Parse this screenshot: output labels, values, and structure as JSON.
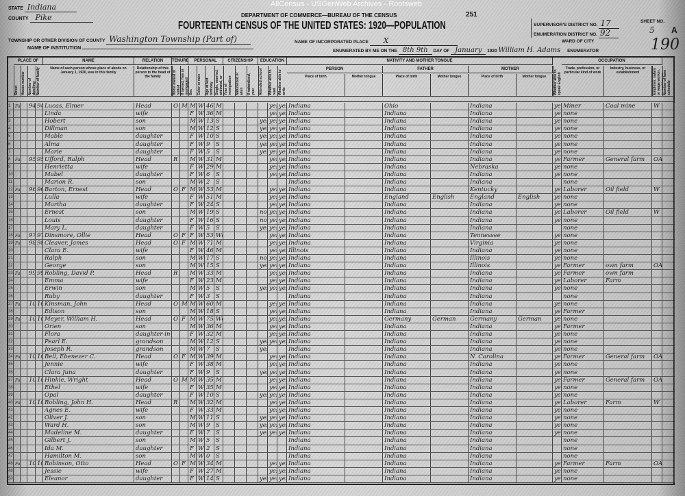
{
  "watermark": "AllCensus - USGenWeb Archives - Rootsweb",
  "header": {
    "state_label": "State",
    "state": "Indiana",
    "county_label": "County",
    "county": "Pike",
    "township_label": "Township or other division of county",
    "township": "Washington Township (Part of)",
    "institution_label": "Name of Institution",
    "department": "Department of Commerce—Bureau of the Census",
    "title": "Fourteenth Census of the United States: 1920—Population",
    "form_no": "251",
    "incorporated_label": "Name of incorporated place",
    "incorporated": "X",
    "enumerated_label": "Enumerated by me on the",
    "enumerated_day": "8th 9th",
    "day_of_label": "day of",
    "month": "January",
    "year": "1920",
    "enumerator": "William H. Adams",
    "enumerator_label": "Enumerator",
    "supervisor_label": "Supervisor's District No.",
    "supervisor": "17",
    "ed_label": "Enumeration District No.",
    "ed": "92",
    "ward_label": "Ward of city",
    "sheet_label": "Sheet No.",
    "sheet": "5",
    "sheet_side": "A",
    "stamp": "190"
  },
  "groups": {
    "abode": "Place of abode",
    "name": "Name",
    "relation": "Relation",
    "tenure": "Tenure",
    "personal": "Personal description",
    "citizenship": "Citizenship",
    "education": "Education",
    "nativity": "Nativity and mother tongue",
    "person": "Person",
    "father": "Father",
    "mother": "Mother",
    "occupation": "Occupation"
  },
  "columns": {
    "c1": "Street",
    "c2": "House number",
    "c3": "Number of dwelling",
    "c4": "Number of family",
    "c5": "Name of each person whose place of abode on January 1, 1920, was in this family",
    "c6": "Relationship of this person to the head of the family",
    "c7": "Home owned or rented",
    "c8": "If owned, free or mortgaged",
    "c9": "Sex",
    "c10": "Color or race",
    "c11": "Age at last birthday",
    "c12": "Single, married, widowed, or divorced",
    "c13": "Year of immigration",
    "c14": "Naturalized or alien",
    "c15": "If naturalized, year",
    "c16": "Attended school",
    "c17": "Whether able to read",
    "c18": "Whether able to write",
    "c19": "Place of birth",
    "c20": "Mother tongue",
    "c21": "Place of birth",
    "c22": "Mother tongue",
    "c23": "Place of birth",
    "c24": "Mother tongue",
    "c25": "Whether able to speak English",
    "c26": "Trade, profession, or particular kind of work",
    "c27": "Industry, business, or establishment",
    "c28": "Employer, salary or wage worker, or working on own account",
    "c29": "Number of farm schedule"
  },
  "rows": [
    {
      "street": "Farm",
      "dw": "94",
      "fam": "94",
      "name": "Lucas, Elmer",
      "rel": "Head",
      "ten": "O",
      "mort": "M",
      "sex": "M",
      "race": "W",
      "age": "46",
      "mar": "M",
      "sch": "",
      "rd": "yes",
      "wr": "yes",
      "bp": "Indiana",
      "fbp": "Ohio",
      "ftg": "",
      "mbp": "Indiana",
      "mtg": "",
      "eng": "yes",
      "occ": "Miner",
      "ind": "Coal mine",
      "cls": "W"
    },
    {
      "name": "Linda",
      "rel": "wife",
      "sex": "F",
      "race": "W",
      "age": "36",
      "mar": "M",
      "rd": "yes",
      "wr": "yes",
      "bp": "Indiana",
      "fbp": "Indiana",
      "mbp": "Indiana",
      "eng": "yes",
      "occ": "none"
    },
    {
      "name": "Hobert",
      "rel": "son",
      "sex": "M",
      "race": "W",
      "age": "13",
      "mar": "S",
      "sch": "yes",
      "rd": "yes",
      "wr": "yes",
      "bp": "Indiana",
      "fbp": "Indiana",
      "mbp": "Indiana",
      "eng": "yes",
      "occ": "none"
    },
    {
      "name": "Dillman",
      "rel": "son",
      "sex": "M",
      "race": "W",
      "age": "12",
      "mar": "S",
      "sch": "yes",
      "rd": "yes",
      "wr": "yes",
      "bp": "Indiana",
      "fbp": "Indiana",
      "mbp": "Indiana",
      "eng": "yes",
      "occ": "none"
    },
    {
      "name": "Mable",
      "rel": "daughter",
      "sex": "F",
      "race": "W",
      "age": "10",
      "mar": "S",
      "sch": "yes",
      "rd": "yes",
      "wr": "yes",
      "bp": "Indiana",
      "fbp": "Indiana",
      "mbp": "Indiana",
      "eng": "yes",
      "occ": "none"
    },
    {
      "name": "Alma",
      "rel": "daughter",
      "sex": "F",
      "race": "W",
      "age": "9",
      "mar": "S",
      "sch": "yes",
      "rd": "yes",
      "wr": "yes",
      "bp": "Indiana",
      "fbp": "Indiana",
      "mbp": "Indiana",
      "eng": "yes",
      "occ": "none"
    },
    {
      "name": "Marie",
      "rel": "daughter",
      "sex": "F",
      "race": "W",
      "age": "5",
      "mar": "S",
      "sch": "yes",
      "rd": "yes",
      "wr": "yes",
      "bp": "Indiana",
      "fbp": "Indiana",
      "mbp": "Indiana",
      "eng": "yes",
      "occ": "none"
    },
    {
      "street": "Farm",
      "dw": "95",
      "fam": "95",
      "name": "Ufford, Ralph",
      "rel": "Head",
      "ten": "R",
      "sex": "M",
      "race": "W",
      "age": "31",
      "mar": "M",
      "rd": "yes",
      "wr": "yes",
      "bp": "Indiana",
      "fbp": "Indiana",
      "mbp": "Indiana",
      "eng": "yes",
      "occ": "Farmer",
      "ind": "General farm",
      "cls": "OA"
    },
    {
      "name": "Henrietta",
      "rel": "wife",
      "sex": "F",
      "race": "W",
      "age": "29",
      "mar": "M",
      "rd": "yes",
      "wr": "yes",
      "bp": "Indiana",
      "fbp": "Indiana",
      "mbp": "Nebraska",
      "eng": "yes",
      "occ": "none"
    },
    {
      "name": "Mabel",
      "rel": "daughter",
      "sex": "F",
      "race": "W",
      "age": "6",
      "mar": "S",
      "rd": "yes",
      "wr": "yes",
      "bp": "Indiana",
      "fbp": "Indiana",
      "mbp": "Indiana",
      "eng": "yes",
      "occ": "none"
    },
    {
      "name": "Marion R.",
      "rel": "son",
      "sex": "M",
      "race": "W",
      "age": "2",
      "mar": "S",
      "bp": "Indiana",
      "fbp": "Indiana",
      "mbp": "Indiana",
      "occ": "none"
    },
    {
      "street": "Farm",
      "dw": "96",
      "fam": "96",
      "name": "Barton, Ernest",
      "rel": "Head",
      "ten": "O",
      "mort": "F",
      "sex": "M",
      "race": "W",
      "age": "53",
      "mar": "M",
      "rd": "yes",
      "wr": "yes",
      "bp": "Indiana",
      "fbp": "Indiana",
      "mbp": "Kentucky",
      "eng": "yes",
      "occ": "Laborer",
      "ind": "Oil field",
      "cls": "W"
    },
    {
      "name": "Lulla",
      "rel": "wife",
      "sex": "F",
      "race": "W",
      "age": "51",
      "mar": "M",
      "rd": "yes",
      "wr": "yes",
      "bp": "Indiana",
      "fbp": "England",
      "ftg": "English",
      "mbp": "England",
      "mtg": "English",
      "eng": "yes",
      "occ": "none"
    },
    {
      "name": "Martha",
      "rel": "daughter",
      "sex": "F",
      "race": "W",
      "age": "24",
      "mar": "S",
      "rd": "yes",
      "wr": "yes",
      "bp": "Indiana",
      "fbp": "Indiana",
      "mbp": "Indiana",
      "eng": "yes",
      "occ": "none"
    },
    {
      "name": "Ernest",
      "rel": "son",
      "sex": "M",
      "race": "W",
      "age": "19",
      "mar": "S",
      "sch": "no",
      "rd": "yes",
      "wr": "yes",
      "bp": "Indiana",
      "fbp": "Indiana",
      "mbp": "Indiana",
      "eng": "yes",
      "occ": "Laborer",
      "ind": "Oil field",
      "cls": "W"
    },
    {
      "name": "Louis",
      "rel": "daughter",
      "sex": "F",
      "race": "W",
      "age": "16",
      "mar": "S",
      "sch": "no",
      "rd": "yes",
      "wr": "yes",
      "bp": "Indiana",
      "fbp": "Indiana",
      "mbp": "Indiana",
      "eng": "yes",
      "occ": "none"
    },
    {
      "name": "Mary L.",
      "rel": "daughter",
      "sex": "F",
      "race": "W",
      "age": "5",
      "mar": "S",
      "sch": "yes",
      "rd": "yes",
      "wr": "yes",
      "bp": "Indiana",
      "fbp": "Indiana",
      "mbp": "Indiana",
      "occ": "none"
    },
    {
      "street": "Farm",
      "dw": "97",
      "fam": "97",
      "name": "Dinsmore, Ollie",
      "rel": "Head",
      "ten": "O",
      "mort": "F",
      "sex": "F",
      "race": "W",
      "age": "53",
      "mar": "Wd",
      "rd": "yes",
      "wr": "yes",
      "bp": "Indiana",
      "fbp": "Indiana",
      "mbp": "Tennessee",
      "eng": "yes",
      "occ": "none"
    },
    {
      "street": "Farm",
      "dw": "98",
      "fam": "98",
      "name": "Cleaver, James",
      "rel": "Head",
      "ten": "O",
      "mort": "F",
      "sex": "M",
      "race": "W",
      "age": "71",
      "mar": "M",
      "rd": "yes",
      "wr": "yes",
      "bp": "Indiana",
      "fbp": "Indiana",
      "mbp": "Virginia",
      "eng": "yes",
      "occ": "none"
    },
    {
      "name": "Clara E.",
      "rel": "wife",
      "sex": "F",
      "race": "W",
      "age": "46",
      "mar": "M",
      "rd": "yes",
      "wr": "yes",
      "bp": "Illinois",
      "fbp": "Indiana",
      "mbp": "Indiana",
      "eng": "yes",
      "occ": "none"
    },
    {
      "name": "Ralph",
      "rel": "son",
      "sex": "M",
      "race": "W",
      "age": "17",
      "mar": "S",
      "sch": "no",
      "rd": "yes",
      "wr": "yes",
      "bp": "Indiana",
      "fbp": "Indiana",
      "mbp": "Illinois",
      "eng": "yes",
      "occ": "none"
    },
    {
      "name": "George",
      "rel": "son",
      "sex": "M",
      "race": "W",
      "age": "15",
      "mar": "S",
      "sch": "yes",
      "rd": "yes",
      "wr": "yes",
      "bp": "Indiana",
      "fbp": "Indiana",
      "mbp": "Illinois",
      "eng": "yes",
      "occ": "Farmer",
      "ind": "own farm",
      "cls": "OA"
    },
    {
      "street": "Farm",
      "dw": "99",
      "fam": "99",
      "name": "Robling, David P.",
      "rel": "Head",
      "ten": "R",
      "sex": "M",
      "race": "W",
      "age": "33",
      "mar": "M",
      "rd": "yes",
      "wr": "yes",
      "bp": "Indiana",
      "fbp": "Indiana",
      "mbp": "Indiana",
      "eng": "yes",
      "occ": "Farmer",
      "ind": "own farm"
    },
    {
      "name": "Emma",
      "rel": "wife",
      "sex": "F",
      "race": "W",
      "age": "23",
      "mar": "M",
      "rd": "yes",
      "wr": "yes",
      "bp": "Indiana",
      "fbp": "Indiana",
      "mbp": "Indiana",
      "eng": "yes",
      "occ": "Laborer",
      "ind": "Farm"
    },
    {
      "name": "Erwin",
      "rel": "son",
      "sex": "M",
      "race": "W",
      "age": "5",
      "mar": "S",
      "sch": "yes",
      "rd": "yes",
      "wr": "yes",
      "bp": "Indiana",
      "fbp": "Indiana",
      "mbp": "Indiana",
      "eng": "yes",
      "occ": "none"
    },
    {
      "name": "Ruby",
      "rel": "daughter",
      "sex": "F",
      "race": "W",
      "age": "3",
      "mar": "S",
      "bp": "Indiana",
      "fbp": "Indiana",
      "mbp": "Indiana",
      "occ": "none"
    },
    {
      "street": "Farm",
      "dw": "100",
      "fam": "100",
      "name": "Kinsman, John",
      "rel": "Head",
      "ten": "O",
      "mort": "M",
      "sex": "M",
      "race": "W",
      "age": "60",
      "mar": "M",
      "rd": "yes",
      "wr": "yes",
      "bp": "Indiana",
      "fbp": "Indiana",
      "mbp": "Indiana",
      "eng": "yes",
      "occ": "none"
    },
    {
      "name": "Edison",
      "rel": "son",
      "sex": "M",
      "race": "W",
      "age": "18",
      "mar": "S",
      "rd": "yes",
      "wr": "yes",
      "bp": "Indiana",
      "fbp": "Indiana",
      "mbp": "Indiana",
      "eng": "yes",
      "occ": "Farmer"
    },
    {
      "street": "Farm",
      "dw": "101",
      "fam": "101",
      "name": "Meyer, William H.",
      "rel": "Head",
      "ten": "O",
      "mort": "F",
      "sex": "M",
      "race": "W",
      "age": "75",
      "mar": "Wd",
      "rd": "yes",
      "wr": "yes",
      "bp": "Indiana",
      "fbp": "Germany",
      "ftg": "German",
      "mbp": "Germany",
      "mtg": "German",
      "eng": "yes",
      "occ": "none"
    },
    {
      "name": "Orien",
      "rel": "son",
      "sex": "M",
      "race": "W",
      "age": "36",
      "mar": "M",
      "rd": "yes",
      "wr": "yes",
      "bp": "Indiana",
      "fbp": "Indiana",
      "mbp": "Indiana",
      "eng": "yes",
      "occ": "Farmer"
    },
    {
      "name": "Flora",
      "rel": "daughter-in-law",
      "sex": "F",
      "race": "W",
      "age": "32",
      "mar": "M",
      "rd": "yes",
      "wr": "yes",
      "bp": "Indiana",
      "fbp": "Indiana",
      "mbp": "Indiana",
      "eng": "yes",
      "occ": "none"
    },
    {
      "name": "Pearl E.",
      "rel": "grandson",
      "sex": "M",
      "race": "W",
      "age": "12",
      "mar": "S",
      "sch": "yes",
      "rd": "yes",
      "wr": "yes",
      "bp": "Indiana",
      "fbp": "Indiana",
      "mbp": "Indiana",
      "eng": "yes",
      "occ": "none"
    },
    {
      "name": "Joseph R.",
      "rel": "grandson",
      "sex": "M",
      "race": "W",
      "age": "7",
      "mar": "S",
      "sch": "yes",
      "bp": "Indiana",
      "fbp": "Indiana",
      "mbp": "Indiana",
      "eng": "yes",
      "occ": "none"
    },
    {
      "street": "Farm",
      "dw": "102",
      "fam": "102",
      "name": "Bell, Ebenezer C.",
      "rel": "Head",
      "ten": "O",
      "mort": "F",
      "sex": "M",
      "race": "W",
      "age": "39",
      "mar": "M",
      "rd": "yes",
      "wr": "yes",
      "bp": "Indiana",
      "fbp": "Indiana",
      "mbp": "N. Carolina",
      "eng": "yes",
      "occ": "Farmer",
      "ind": "General farm",
      "cls": "OA"
    },
    {
      "name": "Jennie",
      "rel": "wife",
      "sex": "F",
      "race": "W",
      "age": "38",
      "mar": "M",
      "rd": "yes",
      "wr": "yes",
      "bp": "Indiana",
      "fbp": "Indiana",
      "mbp": "Indiana",
      "eng": "yes",
      "occ": "none"
    },
    {
      "name": "Clara Juna",
      "rel": "daughter",
      "sex": "F",
      "race": "W",
      "age": "9",
      "mar": "S",
      "sch": "yes",
      "rd": "yes",
      "wr": "yes",
      "bp": "Indiana",
      "fbp": "Indiana",
      "mbp": "Indiana",
      "eng": "yes",
      "occ": "none"
    },
    {
      "street": "Farm",
      "dw": "103",
      "fam": "103",
      "name": "Hinkle, Wright",
      "rel": "Head",
      "ten": "O",
      "mort": "M",
      "sex": "M",
      "race": "W",
      "age": "35",
      "mar": "M",
      "rd": "yes",
      "wr": "yes",
      "bp": "Indiana",
      "fbp": "Indiana",
      "mbp": "Indiana",
      "eng": "yes",
      "occ": "Farmer",
      "ind": "General farm",
      "cls": "OA"
    },
    {
      "name": "Ethel",
      "rel": "wife",
      "sex": "F",
      "race": "W",
      "age": "35",
      "mar": "M",
      "rd": "yes",
      "wr": "yes",
      "bp": "Indiana",
      "fbp": "Indiana",
      "mbp": "Indiana",
      "eng": "yes",
      "occ": "none"
    },
    {
      "name": "Opal",
      "rel": "daughter",
      "sex": "F",
      "race": "W",
      "age": "10",
      "mar": "S",
      "sch": "yes",
      "rd": "yes",
      "wr": "yes",
      "bp": "Indiana",
      "fbp": "Indiana",
      "mbp": "Indiana",
      "eng": "yes",
      "occ": "none"
    },
    {
      "street": "Farm",
      "dw": "104",
      "fam": "104",
      "name": "Robling, John H.",
      "rel": "Head",
      "ten": "R",
      "sex": "M",
      "race": "W",
      "age": "32",
      "mar": "M",
      "rd": "yes",
      "wr": "yes",
      "bp": "Indiana",
      "fbp": "Indiana",
      "mbp": "Indiana",
      "eng": "yes",
      "occ": "Laborer",
      "ind": "Farm",
      "cls": "W"
    },
    {
      "name": "Agnes E.",
      "rel": "wife",
      "sex": "F",
      "race": "W",
      "age": "33",
      "mar": "M",
      "rd": "yes",
      "wr": "yes",
      "bp": "Indiana",
      "fbp": "Indiana",
      "mbp": "Indiana",
      "eng": "yes",
      "occ": "none"
    },
    {
      "name": "Oliver J.",
      "rel": "son",
      "sex": "M",
      "race": "W",
      "age": "11",
      "mar": "S",
      "sch": "yes",
      "rd": "yes",
      "wr": "yes",
      "bp": "Indiana",
      "fbp": "Indiana",
      "mbp": "Indiana",
      "eng": "yes",
      "occ": "none"
    },
    {
      "name": "Ward H.",
      "rel": "son",
      "sex": "M",
      "race": "W",
      "age": "9",
      "mar": "S",
      "sch": "yes",
      "rd": "yes",
      "wr": "yes",
      "bp": "Indiana",
      "fbp": "Indiana",
      "mbp": "Indiana",
      "eng": "yes",
      "occ": "none"
    },
    {
      "name": "Madeline M.",
      "rel": "daughter",
      "sex": "F",
      "race": "W",
      "age": "7",
      "mar": "S",
      "sch": "yes",
      "rd": "yes",
      "wr": "yes",
      "bp": "Indiana",
      "fbp": "Indiana",
      "mbp": "Indiana",
      "eng": "yes",
      "occ": "none"
    },
    {
      "name": "Gilbert J.",
      "rel": "son",
      "sex": "M",
      "race": "W",
      "age": "5",
      "mar": "S",
      "bp": "Indiana",
      "fbp": "Indiana",
      "mbp": "Indiana",
      "occ": "none"
    },
    {
      "name": "Ida M.",
      "rel": "daughter",
      "sex": "F",
      "race": "W",
      "age": "2",
      "mar": "S",
      "bp": "Indiana",
      "fbp": "Indiana",
      "mbp": "Indiana",
      "occ": "none"
    },
    {
      "name": "Hamilton M.",
      "rel": "son",
      "sex": "M",
      "race": "W",
      "age": "0",
      "mar": "S",
      "bp": "Indiana",
      "fbp": "Indiana",
      "mbp": "Indiana",
      "occ": "none"
    },
    {
      "street": "Farm",
      "dw": "105",
      "fam": "105",
      "name": "Robinson, Otto",
      "rel": "Head",
      "ten": "O",
      "mort": "F",
      "sex": "M",
      "race": "W",
      "age": "34",
      "mar": "M",
      "rd": "yes",
      "wr": "yes",
      "bp": "Indiana",
      "fbp": "Indiana",
      "mbp": "Indiana",
      "eng": "yes",
      "occ": "Farmer",
      "ind": "Farm",
      "cls": "OA"
    },
    {
      "name": "Jessie",
      "rel": "wife",
      "sex": "F",
      "race": "W",
      "age": "27",
      "mar": "M",
      "rd": "yes",
      "wr": "yes",
      "bp": "Indiana",
      "fbp": "Indiana",
      "mbp": "Indiana",
      "eng": "yes",
      "occ": "none"
    },
    {
      "name": "Eleanor",
      "rel": "daughter",
      "sex": "F",
      "race": "W",
      "age": "14",
      "mar": "S",
      "sch": "yes",
      "rd": "yes",
      "wr": "yes",
      "bp": "Indiana",
      "fbp": "Indiana",
      "mbp": "Indiana",
      "eng": "yes",
      "occ": "none"
    }
  ]
}
